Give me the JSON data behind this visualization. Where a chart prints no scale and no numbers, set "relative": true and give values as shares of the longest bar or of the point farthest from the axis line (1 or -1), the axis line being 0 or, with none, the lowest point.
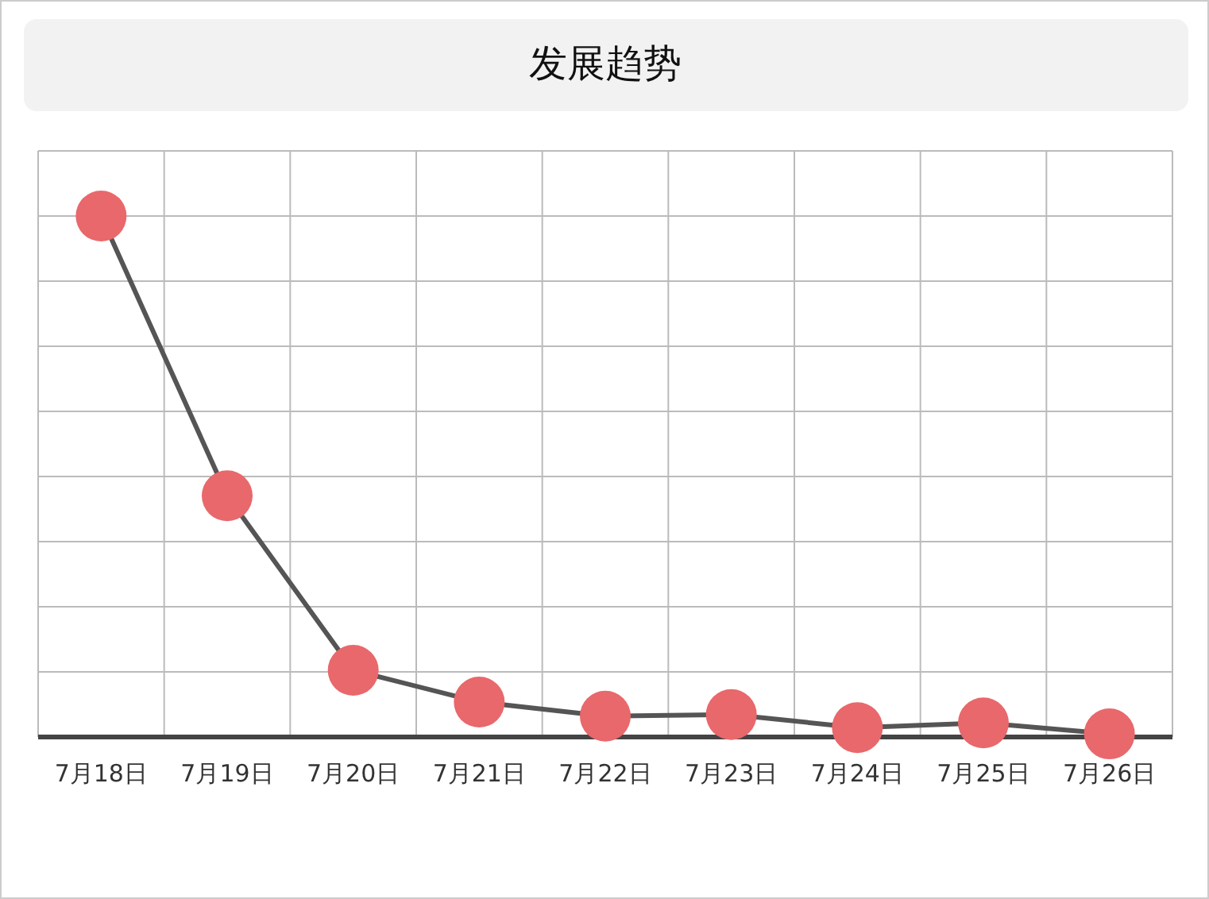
{
  "chart_data": {
    "type": "line",
    "title": "发展趋势",
    "categories": [
      "7月18日",
      "7月19日",
      "7月20日",
      "7月21日",
      "7月22日",
      "7月23日",
      "7月24日",
      "7月25日",
      "7月26日"
    ],
    "series": [
      {
        "color": "#555555",
        "values": [
          1,
          0.463,
          0.128,
          0.067,
          0.04,
          0.043,
          0.018,
          0.027,
          0.006
        ]
      }
    ],
    "relative": true,
    "grid": true,
    "marker": "circle",
    "line_style": "solid"
  }
}
